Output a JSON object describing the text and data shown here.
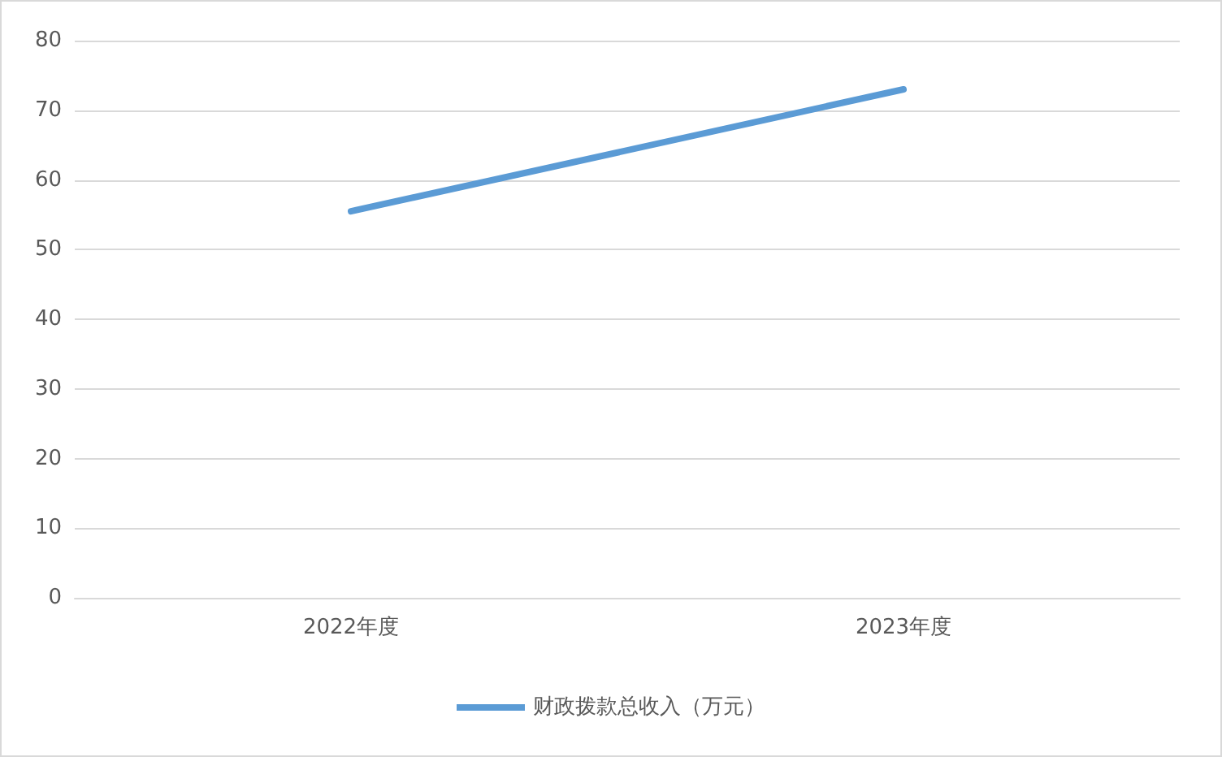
{
  "chart_data": {
    "type": "line",
    "categories": [
      "2022年度",
      "2023年度"
    ],
    "series": [
      {
        "name": "财政拨款总收入（万元）",
        "color": "#5b9bd5",
        "values": [
          55.5,
          73
        ]
      }
    ],
    "ylim": [
      0,
      80
    ],
    "yticks": [
      0,
      10,
      20,
      30,
      40,
      50,
      60,
      70,
      80
    ],
    "grid": "y",
    "legend": "bottom",
    "marker": "none"
  }
}
